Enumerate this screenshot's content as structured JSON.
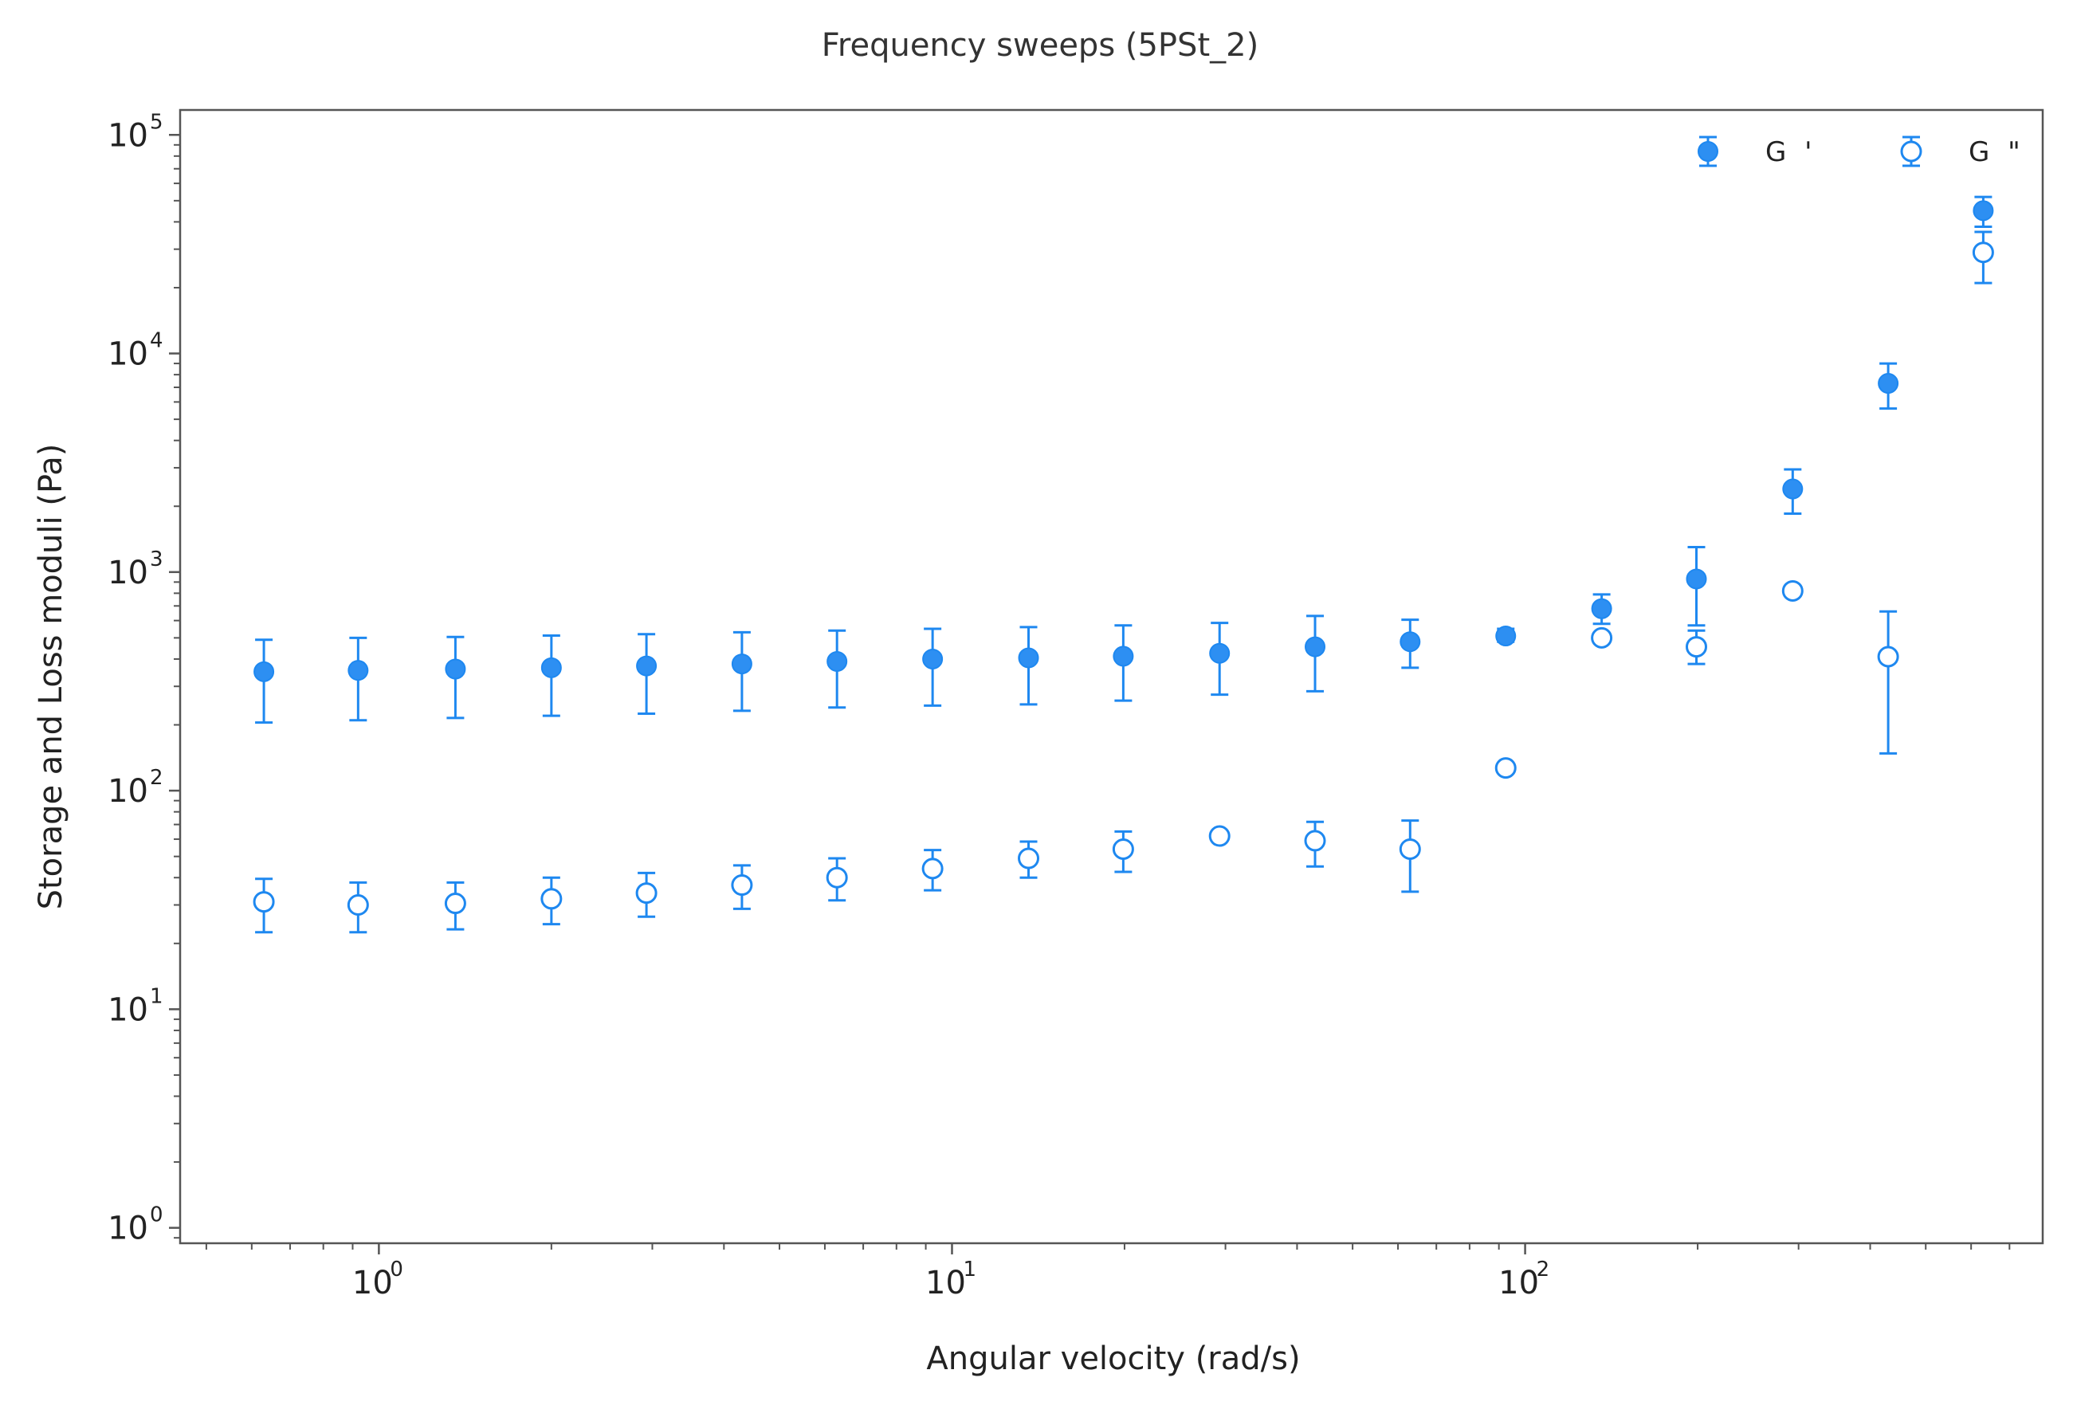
{
  "chart_data": {
    "type": "scatter",
    "title": "Frequency sweeps (5PSt_2)",
    "xlabel": "Angular velocity (rad/s)",
    "ylabel": "Storage and Loss moduli (Pa)",
    "xscale": "log",
    "yscale": "log",
    "xlim": [
      0.45,
      800
    ],
    "ylim": [
      0.85,
      130000
    ],
    "x_ticks": [
      1,
      10,
      100
    ],
    "y_ticks": [
      1,
      10,
      100,
      1000,
      10000,
      100000
    ],
    "tick_base": "10",
    "x_tick_exponents": [
      "0",
      "1",
      "2"
    ],
    "y_tick_exponents": [
      "0",
      "1",
      "2",
      "3",
      "4",
      "5"
    ],
    "grid": false,
    "legend": {
      "position": "top-right",
      "ncol": 2
    },
    "color": "#1e88f0",
    "series": [
      {
        "name": "G '",
        "marker": "filled-circle",
        "x": [
          0.63,
          0.92,
          1.36,
          2.0,
          2.93,
          4.3,
          6.3,
          9.25,
          13.6,
          19.9,
          29.3,
          43.0,
          63.0,
          92.5,
          136,
          199,
          293,
          430,
          630
        ],
        "y": [
          350,
          355,
          360,
          365,
          372,
          380,
          390,
          400,
          405,
          412,
          425,
          455,
          480,
          510,
          680,
          930,
          2400,
          7300,
          45000
        ],
        "yerr_low": [
          205,
          210,
          215,
          220,
          225,
          232,
          240,
          245,
          248,
          258,
          275,
          285,
          365,
          480,
          580,
          570,
          1850,
          5600,
          38000
        ],
        "yerr_high": [
          490,
          500,
          505,
          512,
          520,
          530,
          540,
          550,
          560,
          570,
          585,
          630,
          605,
          550,
          790,
          1300,
          2950,
          9000,
          52000
        ]
      },
      {
        "name": "G \"",
        "marker": "open-circle",
        "x": [
          0.63,
          0.92,
          1.36,
          2.0,
          2.93,
          4.3,
          6.3,
          9.25,
          13.6,
          19.9,
          29.3,
          43.0,
          63.0,
          92.5,
          136,
          199,
          293,
          430,
          630
        ],
        "y": [
          31,
          30,
          30.5,
          32,
          34,
          37,
          40,
          44,
          49,
          54,
          62,
          59,
          54,
          127,
          500,
          455,
          820,
          410,
          29000
        ],
        "yerr_low": [
          22.5,
          22.5,
          23.2,
          24.5,
          26.5,
          28.8,
          31.5,
          35,
          40,
          42.5,
          null,
          45,
          34.5,
          null,
          null,
          380,
          null,
          148,
          21000
        ],
        "yerr_high": [
          39.5,
          38,
          38,
          40,
          42,
          45.5,
          49,
          53.5,
          58.5,
          65,
          null,
          72,
          73,
          null,
          null,
          540,
          null,
          660,
          36000
        ]
      }
    ]
  }
}
